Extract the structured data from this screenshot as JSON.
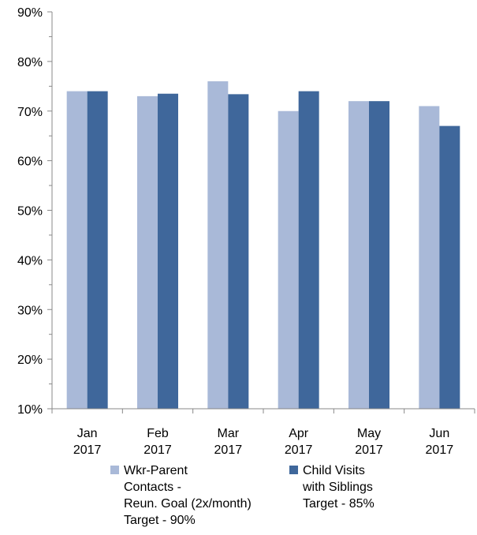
{
  "chart_data": {
    "type": "bar",
    "categories": [
      [
        "Jan",
        "2017"
      ],
      [
        "Feb",
        "2017"
      ],
      [
        "Mar",
        "2017"
      ],
      [
        "Apr",
        "2017"
      ],
      [
        "May",
        "2017"
      ],
      [
        "Jun",
        "2017"
      ]
    ],
    "series": [
      {
        "name": "Wkr-Parent\nContacts -\nReun. Goal (2x/month)\nTarget - 90%",
        "color": "#a9b9d8",
        "values": [
          74,
          73,
          76,
          70,
          72,
          71
        ]
      },
      {
        "name": "Child Visits\nwith Siblings\nTarget - 85%",
        "color": "#3f679b",
        "values": [
          74,
          73.5,
          73.4,
          74,
          72,
          67
        ]
      }
    ],
    "yticks": [
      "10%",
      "20%",
      "30%",
      "40%",
      "50%",
      "60%",
      "70%",
      "80%",
      "90%"
    ],
    "ylim": [
      10,
      90
    ],
    "grid": false,
    "legend_position": "bottom"
  }
}
